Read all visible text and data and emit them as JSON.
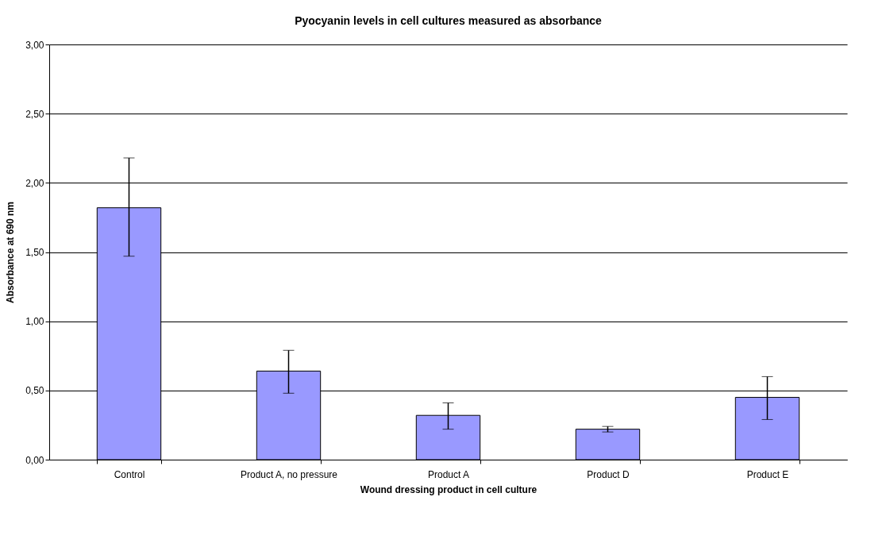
{
  "chart_data": {
    "type": "bar",
    "title": "Pyocyanin levels in cell cultures measured as absorbance",
    "xlabel": "Wound dressing product in cell culture",
    "ylabel": "Absorbance at 690 nm",
    "categories": [
      "Control",
      "Product A, no pressure",
      "Product A",
      "Product D",
      "Product E"
    ],
    "values": [
      1.82,
      0.64,
      0.32,
      0.22,
      0.45
    ],
    "color": "#9999ff",
    "errors": [
      [
        1.47,
        2.18
      ],
      [
        0.48,
        0.79
      ],
      [
        0.22,
        0.41
      ],
      [
        0.2,
        0.24
      ],
      [
        0.29,
        0.6
      ]
    ],
    "ylim": [
      0,
      3
    ],
    "yticks": [
      {
        "value": 0,
        "label": "0,00"
      },
      {
        "value": 0.5,
        "label": "0,50"
      },
      {
        "value": 1,
        "label": "1,00"
      },
      {
        "value": 1.5,
        "label": "1,50"
      },
      {
        "value": 2,
        "label": "2,00"
      },
      {
        "value": 2.5,
        "label": "2,50"
      },
      {
        "value": 3,
        "label": "3,00"
      }
    ],
    "grid": "y"
  }
}
